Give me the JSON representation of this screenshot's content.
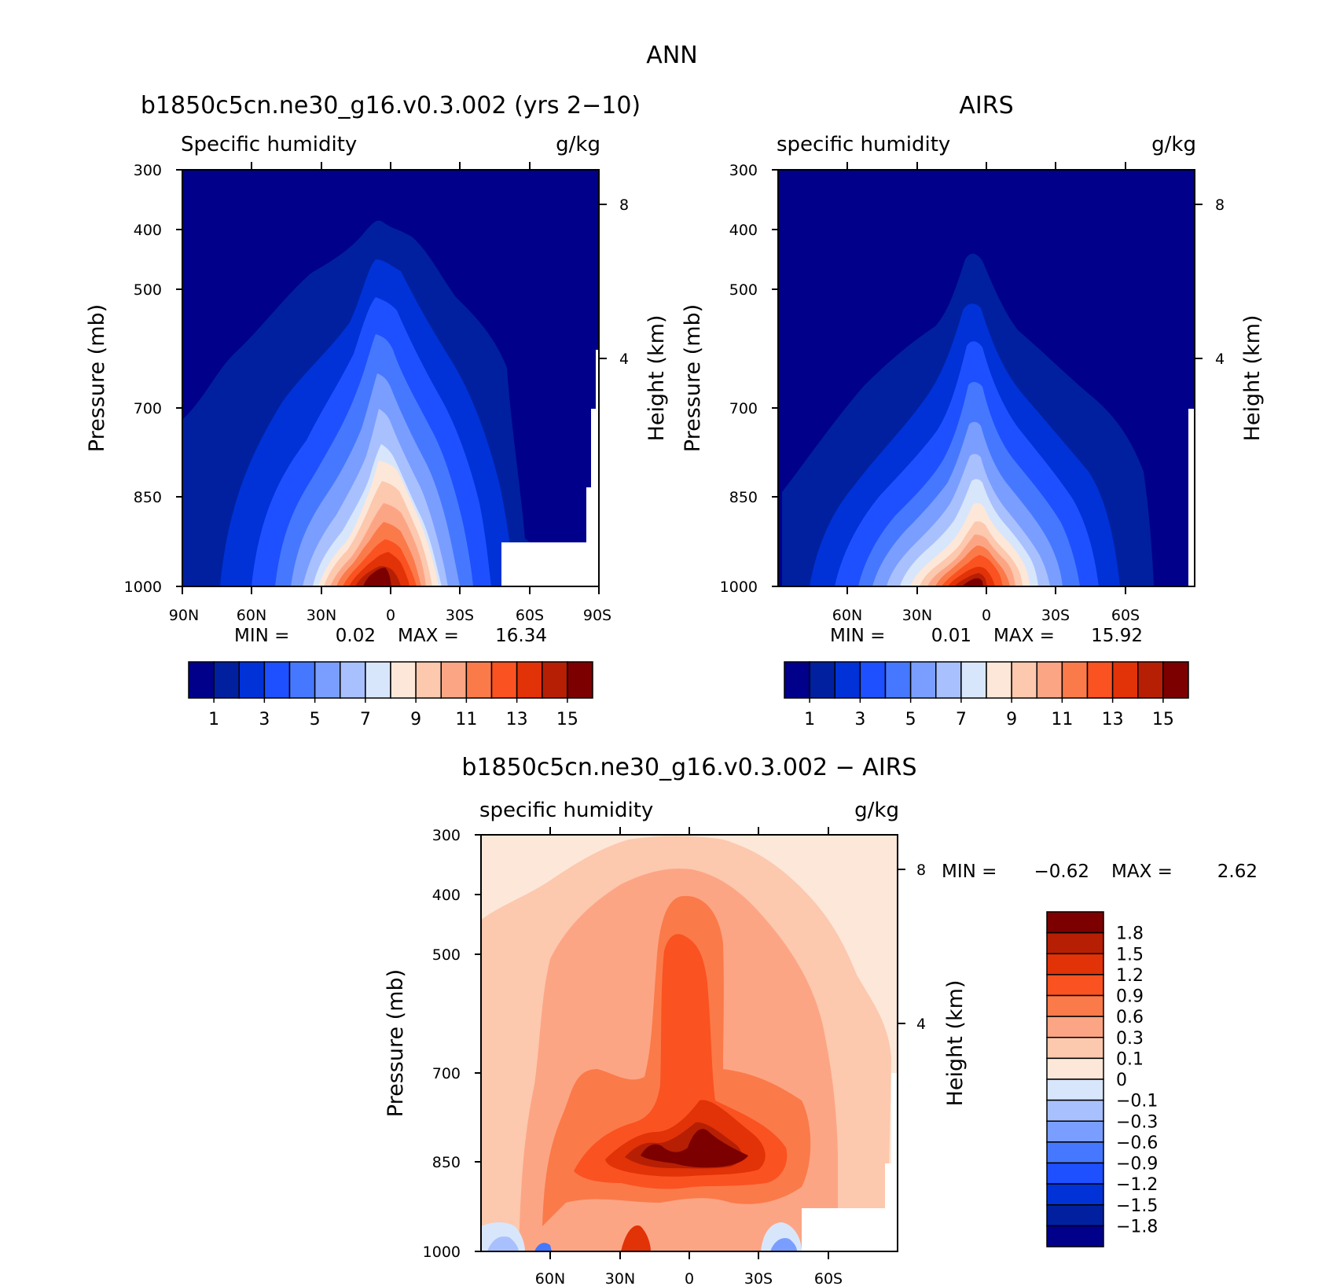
{
  "page_title": "ANN",
  "colors": {
    "seq": [
      "#00008b",
      "#0020a0",
      "#0032d8",
      "#1e50ff",
      "#4678ff",
      "#7a9eff",
      "#a9c0ff",
      "#d8e6fb",
      "#fde7d8",
      "#fcc8ae",
      "#fca584",
      "#fb7a4a",
      "#fa5220",
      "#e23207",
      "#b61f04",
      "#7c0000"
    ],
    "diff": [
      "#00008b",
      "#0020a0",
      "#0032d8",
      "#1e50ff",
      "#4678ff",
      "#7a9eff",
      "#a9c0ff",
      "#d8e6fb",
      "#fde7d8",
      "#fcc8ae",
      "#fca584",
      "#fb7a4a",
      "#fa5220",
      "#e23207",
      "#b61f04",
      "#7c0000"
    ]
  },
  "panels": {
    "model": {
      "title": "b1850c5cn.ne30_g16.v0.3.002 (yrs 2−10)",
      "variable": "Specific humidity",
      "units": "g/kg",
      "ylabel": "Pressure (mb)",
      "ylabel_right": "Height (km)",
      "min_label": "MIN =",
      "min_value": "0.02",
      "max_label": "MAX =",
      "max_value": "16.34"
    },
    "obs": {
      "title": "AIRS",
      "variable": "specific humidity",
      "units": "g/kg",
      "ylabel": "Pressure (mb)",
      "ylabel_right": "Height (km)",
      "min_label": "MIN =",
      "min_value": "0.01",
      "max_label": "MAX =",
      "max_value": "15.92"
    },
    "diff": {
      "title": "b1850c5cn.ne30_g16.v0.3.002 − AIRS",
      "variable": "specific humidity",
      "units": "g/kg",
      "ylabel": "Pressure (mb)",
      "ylabel_right": "Height (km)",
      "min_label": "MIN =",
      "min_value": "−0.62",
      "max_label": "MAX =",
      "max_value": "2.62"
    }
  },
  "chart_data": [
    {
      "type": "heatmap",
      "title": "b1850c5cn.ne30_g16.v0.3.002 (yrs 2−10)",
      "xlabel": "",
      "ylabel": "Pressure (mb)",
      "ylabel_right": "Height (km)",
      "x_ticks": [
        "90N",
        "60N",
        "30N",
        "0",
        "30S",
        "60S",
        "90S"
      ],
      "y_ticks": [
        "300",
        "400",
        "500",
        "700",
        "850",
        "1000"
      ],
      "y_ticks_right": [
        "8",
        "4"
      ],
      "ylim": [
        300,
        1000
      ],
      "xlim": [
        90,
        -90
      ],
      "log_y": true,
      "colorbar_labels": [
        "1",
        "3",
        "5",
        "7",
        "9",
        "11",
        "13",
        "15"
      ],
      "min": 0.02,
      "max": 16.34,
      "units": "g/kg"
    },
    {
      "type": "heatmap",
      "title": "AIRS",
      "xlabel": "",
      "ylabel": "Pressure (mb)",
      "ylabel_right": "Height (km)",
      "x_ticks": [
        "60N",
        "30N",
        "0",
        "30S",
        "60S"
      ],
      "y_ticks": [
        "300",
        "400",
        "500",
        "700",
        "850",
        "1000"
      ],
      "y_ticks_right": [
        "8",
        "4"
      ],
      "ylim": [
        300,
        1000
      ],
      "xlim": [
        90,
        -90
      ],
      "log_y": true,
      "colorbar_labels": [
        "1",
        "3",
        "5",
        "7",
        "9",
        "11",
        "13",
        "15"
      ],
      "min": 0.01,
      "max": 15.92,
      "units": "g/kg"
    },
    {
      "type": "heatmap",
      "title": "b1850c5cn.ne30_g16.v0.3.002 − AIRS",
      "xlabel": "",
      "ylabel": "Pressure (mb)",
      "ylabel_right": "Height (km)",
      "x_ticks": [
        "60N",
        "30N",
        "0",
        "30S",
        "60S"
      ],
      "y_ticks": [
        "300",
        "400",
        "500",
        "700",
        "850",
        "1000"
      ],
      "y_ticks_right": [
        "8",
        "4"
      ],
      "ylim": [
        300,
        1000
      ],
      "xlim": [
        90,
        -90
      ],
      "log_y": true,
      "colorbar_labels": [
        "1.8",
        "1.5",
        "1.2",
        "0.9",
        "0.6",
        "0.3",
        "0.1",
        "0",
        "−0.1",
        "−0.3",
        "−0.6",
        "−0.9",
        "−1.2",
        "−1.5",
        "−1.8"
      ],
      "min": -0.62,
      "max": 2.62,
      "units": "g/kg"
    }
  ]
}
